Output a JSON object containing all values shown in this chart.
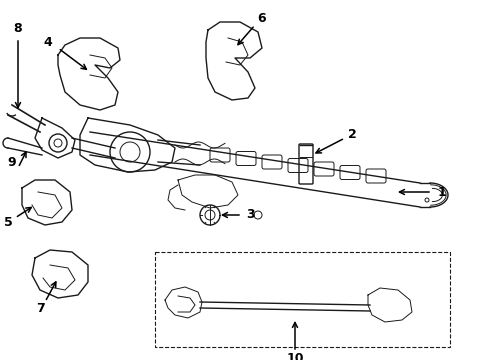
{
  "bg_color": "#ffffff",
  "line_color": "#1a1a1a",
  "text_color": "#000000",
  "figsize": [
    4.9,
    3.6
  ],
  "dpi": 100,
  "xlim": [
    0,
    490
  ],
  "ylim": [
    360,
    0
  ]
}
